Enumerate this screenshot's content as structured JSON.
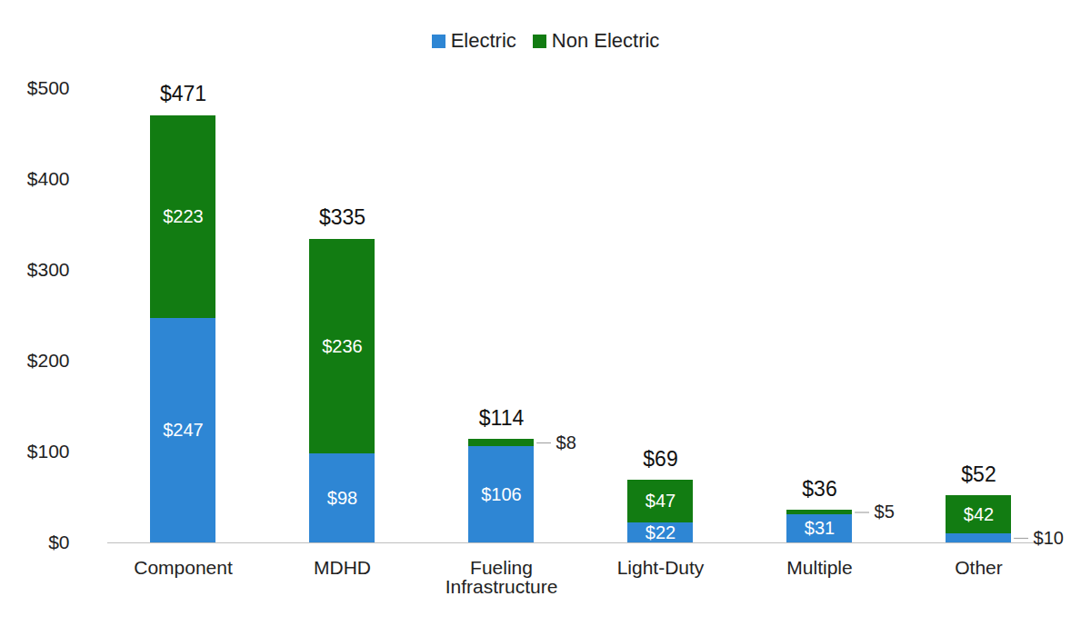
{
  "chart_data": {
    "type": "bar",
    "stacked": true,
    "categories": [
      "Component",
      "MDHD",
      "Fueling Infrastructure",
      "Light-Duty",
      "Multiple",
      "Other"
    ],
    "series": [
      {
        "name": "Electric",
        "color": "#2e86d4",
        "values": [
          247,
          98,
          106,
          22,
          31,
          10
        ],
        "value_labels": [
          "$247",
          "$98",
          "$106",
          "$22",
          "$31",
          "$10"
        ]
      },
      {
        "name": "Non Electric",
        "color": "#127c12",
        "values": [
          223,
          236,
          8,
          47,
          5,
          42
        ],
        "value_labels": [
          "$223",
          "$236",
          "$8",
          "$47",
          "$5",
          "$42"
        ]
      }
    ],
    "totals": [
      471,
      335,
      114,
      69,
      36,
      52
    ],
    "total_labels": [
      "$471",
      "$335",
      "$114",
      "$69",
      "$36",
      "$52"
    ],
    "ylim": [
      0,
      500
    ],
    "yticks": [
      {
        "value": 0,
        "label": "$0"
      },
      {
        "value": 100,
        "label": "$100"
      },
      {
        "value": 200,
        "label": "$200"
      },
      {
        "value": 300,
        "label": "$300"
      },
      {
        "value": 400,
        "label": "$400"
      },
      {
        "value": 500,
        "label": "$500"
      }
    ],
    "grid": false,
    "legend": "top",
    "data_labels": true
  }
}
